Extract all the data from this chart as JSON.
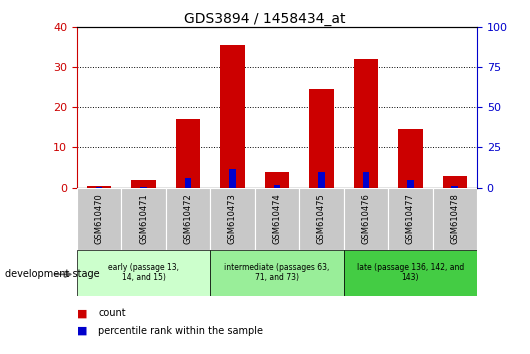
{
  "title": "GDS3894 / 1458434_at",
  "samples": [
    "GSM610470",
    "GSM610471",
    "GSM610472",
    "GSM610473",
    "GSM610474",
    "GSM610475",
    "GSM610476",
    "GSM610477",
    "GSM610478"
  ],
  "count_values": [
    0.3,
    2.0,
    17.0,
    35.5,
    4.0,
    24.5,
    32.0,
    14.5,
    3.0
  ],
  "percentile_values": [
    0.5,
    0.5,
    6.0,
    11.5,
    1.5,
    9.5,
    10.0,
    4.5,
    1.0
  ],
  "count_color": "#cc0000",
  "percentile_color": "#0000cc",
  "ylim_left": [
    0,
    40
  ],
  "ylim_right": [
    0,
    100
  ],
  "yticks_left": [
    0,
    10,
    20,
    30,
    40
  ],
  "yticks_right": [
    0,
    25,
    50,
    75,
    100
  ],
  "bar_width": 0.55,
  "pct_bar_width": 0.15,
  "groups": [
    {
      "label": "early (passage 13,\n14, and 15)",
      "indices": [
        0,
        1,
        2
      ],
      "color": "#ccffcc"
    },
    {
      "label": "intermediate (passages 63,\n71, and 73)",
      "indices": [
        3,
        4,
        5
      ],
      "color": "#99ee99"
    },
    {
      "label": "late (passage 136, 142, and\n143)",
      "indices": [
        6,
        7,
        8
      ],
      "color": "#44cc44"
    }
  ],
  "dev_label": "development stage",
  "legend_count": "count",
  "legend_pct": "percentile rank within the sample",
  "tick_area_bg": "#c8c8c8",
  "plot_bg": "#ffffff",
  "fig_bg": "#ffffff"
}
